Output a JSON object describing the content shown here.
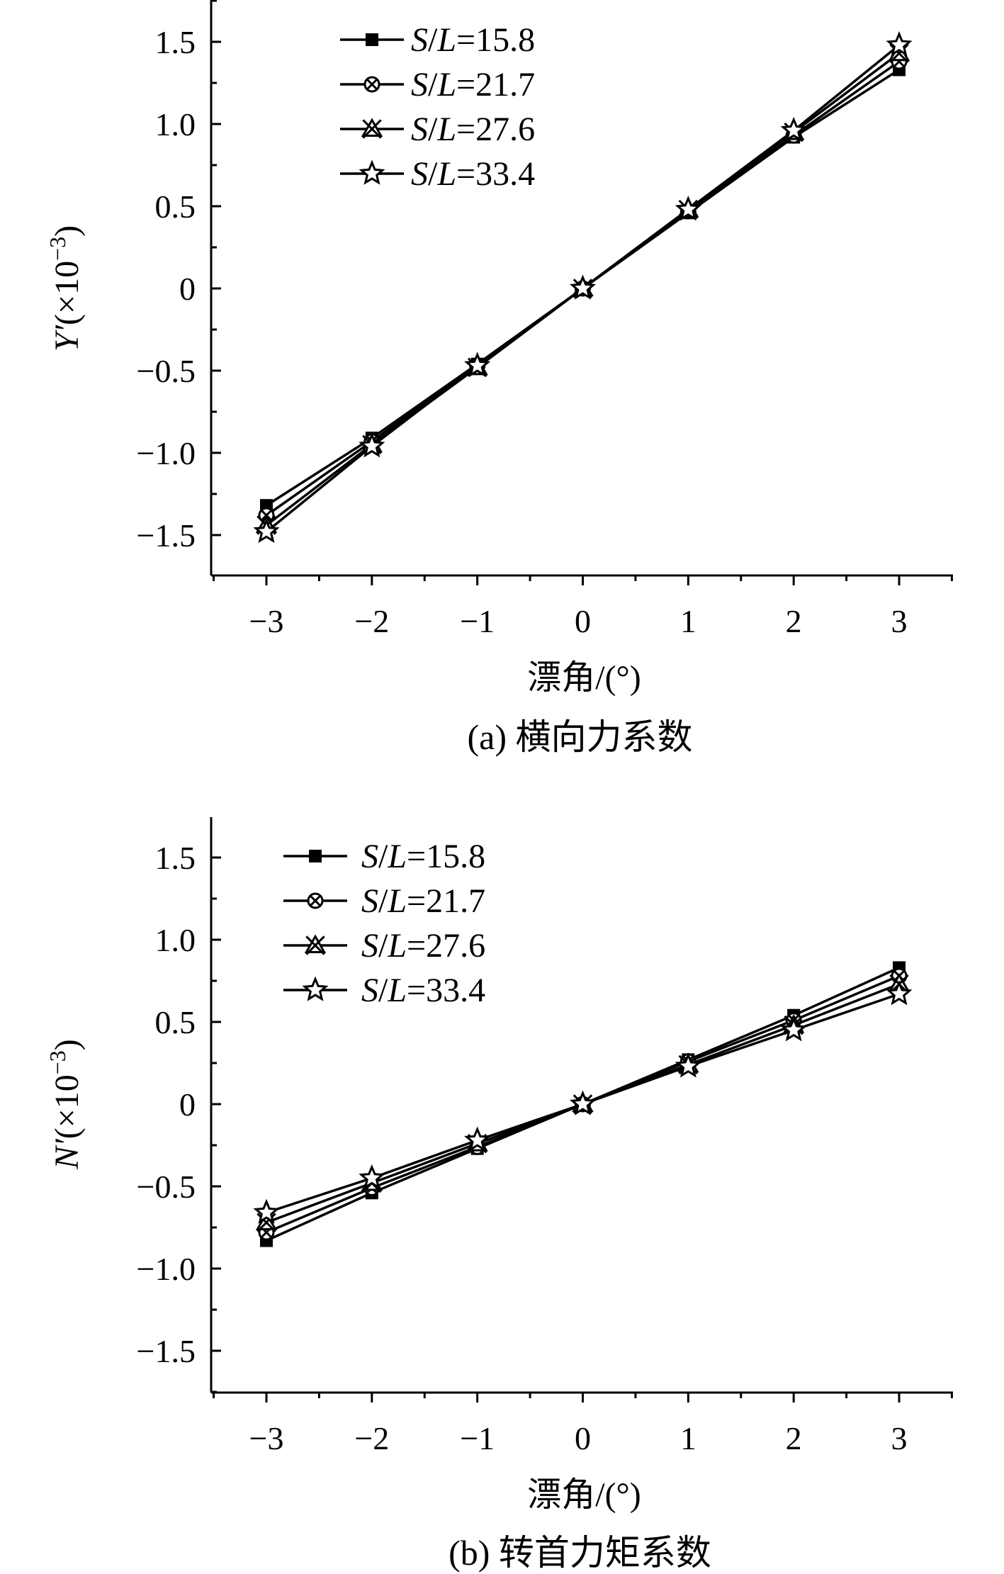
{
  "chart_data": [
    {
      "type": "line",
      "title": "",
      "caption": "(a) 横向力系数",
      "xlabel": "漂角/(°)",
      "ylabel": "Y′(×10⁻³)",
      "ylabel_parts": {
        "symbol": "Y′",
        "pre": "(×10",
        "sup": "−3",
        "post": ")"
      },
      "xlim": [
        -3.5,
        3.5
      ],
      "ylim": [
        -1.75,
        1.75
      ],
      "x_ticks": [
        -3,
        -2,
        -1,
        0,
        1,
        2,
        3
      ],
      "x_tick_labels": [
        "−3",
        "−2",
        "−1",
        "0",
        "1",
        "2",
        "3"
      ],
      "y_ticks": [
        -1.5,
        -1.0,
        -0.5,
        0,
        0.5,
        1.0,
        1.5
      ],
      "y_tick_labels": [
        "−1.5",
        "−1.0",
        "−0.5",
        "0",
        "0.5",
        "1.0",
        "1.5"
      ],
      "grid": false,
      "legend_position": "top-left",
      "x": [
        -3,
        -2,
        -1,
        0,
        1,
        2,
        3
      ],
      "series": [
        {
          "name": "S/L=15.8",
          "name_parts": [
            "S",
            "/",
            "L",
            "=15.8"
          ],
          "marker": "square",
          "values": [
            -1.32,
            -0.91,
            -0.46,
            0.0,
            0.46,
            0.92,
            1.33
          ]
        },
        {
          "name": "S/L=21.7",
          "name_parts": [
            "S",
            "/",
            "L",
            "=21.7"
          ],
          "marker": "circle-x",
          "values": [
            -1.38,
            -0.93,
            -0.47,
            0.0,
            0.47,
            0.93,
            1.38
          ]
        },
        {
          "name": "S/L=27.6",
          "name_parts": [
            "S",
            "/",
            "L",
            "=27.6"
          ],
          "marker": "triangle-x",
          "values": [
            -1.44,
            -0.95,
            -0.48,
            0.0,
            0.48,
            0.95,
            1.43
          ]
        },
        {
          "name": "S/L=33.4",
          "name_parts": [
            "S",
            "/",
            "L",
            "=33.4"
          ],
          "marker": "star",
          "values": [
            -1.48,
            -0.96,
            -0.47,
            0.0,
            0.48,
            0.96,
            1.48
          ]
        }
      ]
    },
    {
      "type": "line",
      "title": "",
      "caption": "(b) 转首力矩系数",
      "xlabel": "漂角/(°)",
      "ylabel": "N′(×10⁻³)",
      "ylabel_parts": {
        "symbol": "N′",
        "pre": "(×10",
        "sup": "−3",
        "post": ")"
      },
      "xlim": [
        -3.5,
        3.5
      ],
      "ylim": [
        -1.75,
        1.75
      ],
      "x_ticks": [
        -3,
        -2,
        -1,
        0,
        1,
        2,
        3
      ],
      "x_tick_labels": [
        "−3",
        "−2",
        "−1",
        "0",
        "1",
        "2",
        "3"
      ],
      "y_ticks": [
        -1.5,
        -1.0,
        -0.5,
        0,
        0.5,
        1.0,
        1.5
      ],
      "y_tick_labels": [
        "−1.5",
        "−1.0",
        "−0.5",
        "0",
        "0.5",
        "1.0",
        "1.5"
      ],
      "grid": false,
      "legend_position": "top-left",
      "x": [
        -3,
        -2,
        -1,
        0,
        1,
        2,
        3
      ],
      "series": [
        {
          "name": "S/L=15.8",
          "name_parts": [
            "S",
            "/",
            "L",
            "=15.8"
          ],
          "marker": "square",
          "values": [
            -0.83,
            -0.54,
            -0.27,
            0.0,
            0.27,
            0.54,
            0.83
          ]
        },
        {
          "name": "S/L=21.7",
          "name_parts": [
            "S",
            "/",
            "L",
            "=21.7"
          ],
          "marker": "circle-x",
          "values": [
            -0.78,
            -0.51,
            -0.26,
            0.0,
            0.26,
            0.51,
            0.78
          ]
        },
        {
          "name": "S/L=27.6",
          "name_parts": [
            "S",
            "/",
            "L",
            "=27.6"
          ],
          "marker": "triangle-x",
          "values": [
            -0.72,
            -0.48,
            -0.24,
            0.0,
            0.24,
            0.48,
            0.73
          ]
        },
        {
          "name": "S/L=33.4",
          "name_parts": [
            "S",
            "/",
            "L",
            "=33.4"
          ],
          "marker": "star",
          "values": [
            -0.66,
            -0.45,
            -0.22,
            0.0,
            0.23,
            0.45,
            0.67
          ]
        }
      ]
    }
  ]
}
